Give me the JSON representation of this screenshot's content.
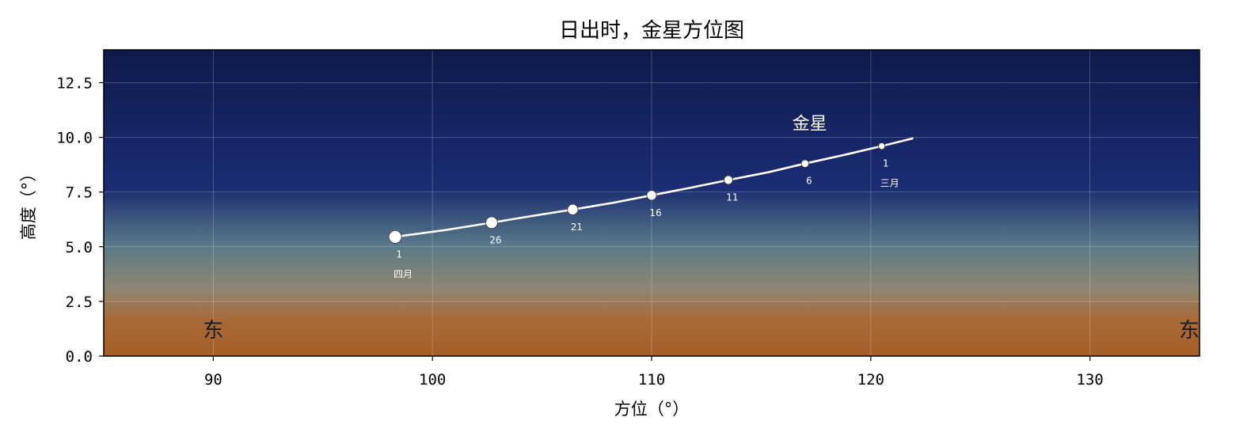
{
  "chart_data": {
    "type": "line",
    "title": "日出时，金星方位图",
    "xlabel": "方位（°）",
    "ylabel": "高度（°）",
    "xlim": [
      85,
      135
    ],
    "ylim": [
      0,
      14
    ],
    "xticks": [
      "90",
      "100",
      "110",
      "120",
      "130"
    ],
    "yticks": [
      "0.0",
      "2.5",
      "5.0",
      "7.5",
      "10.0",
      "12.5"
    ],
    "grid": true,
    "series": [
      {
        "name": "金星",
        "color": "#ffffff",
        "curve": [
          {
            "x": 98.3,
            "y": 5.45
          },
          {
            "x": 100.5,
            "y": 5.75
          },
          {
            "x": 102.7,
            "y": 6.1
          },
          {
            "x": 104.5,
            "y": 6.4
          },
          {
            "x": 106.4,
            "y": 6.7
          },
          {
            "x": 108.2,
            "y": 7.0
          },
          {
            "x": 110.0,
            "y": 7.35
          },
          {
            "x": 111.8,
            "y": 7.7
          },
          {
            "x": 113.5,
            "y": 8.05
          },
          {
            "x": 115.3,
            "y": 8.4
          },
          {
            "x": 117.0,
            "y": 8.8
          },
          {
            "x": 118.8,
            "y": 9.2
          },
          {
            "x": 120.5,
            "y": 9.6
          },
          {
            "x": 121.9,
            "y": 9.95
          }
        ],
        "markers": [
          {
            "x": 120.5,
            "y": 9.6,
            "label": "1",
            "month": "三月"
          },
          {
            "x": 117.0,
            "y": 8.8,
            "label": "6"
          },
          {
            "x": 113.5,
            "y": 8.05,
            "label": "11"
          },
          {
            "x": 110.0,
            "y": 7.35,
            "label": "16"
          },
          {
            "x": 106.4,
            "y": 6.7,
            "label": "21"
          },
          {
            "x": 102.7,
            "y": 6.1,
            "label": "26"
          },
          {
            "x": 98.3,
            "y": 5.45,
            "label": "1",
            "month": "四月"
          }
        ]
      }
    ],
    "horizon_labels": [
      {
        "x": 90,
        "text": "东"
      },
      {
        "x": 135,
        "text": "东南"
      }
    ]
  },
  "sky_gradient": [
    "#0f1a4a",
    "#19296e",
    "#1b2c72",
    "#5a7a88",
    "#8e8672",
    "#a86a38",
    "#a65e26"
  ]
}
